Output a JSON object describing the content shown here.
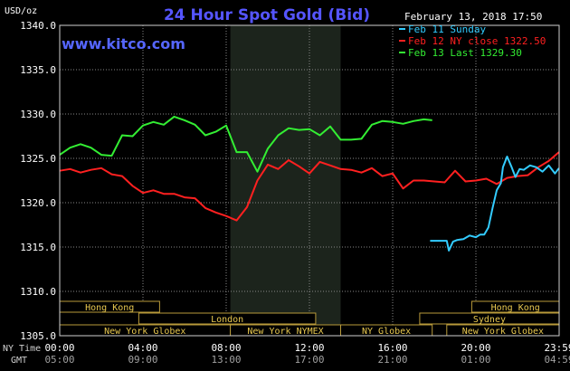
{
  "chart_data": {
    "type": "line",
    "title": "24 Hour Spot Gold (Bid)",
    "watermark": "www.kitco.com",
    "ylabel": "USD/oz",
    "timestamp": "February 13, 2018 17:50",
    "ylim": [
      1305,
      1340
    ],
    "yticks": [
      "1340.0",
      "1335.0",
      "1330.0",
      "1325.0",
      "1320.0",
      "1315.0",
      "1310.0",
      "1305.0"
    ],
    "xlim": [
      0,
      24
    ],
    "x_ny_label": "NY Time",
    "x_gmt_label": "GMT",
    "xticks_ny": [
      "00:00",
      "04:00",
      "08:00",
      "12:00",
      "16:00",
      "20:00",
      "23:59"
    ],
    "xticks_gmt": [
      "05:00",
      "09:00",
      "13:00",
      "17:00",
      "21:00",
      "01:00",
      "04:59"
    ],
    "shaded_session_hours": [
      8.2,
      13.5
    ],
    "sessions": [
      {
        "name": "Hong Kong",
        "row": 1,
        "start": 0,
        "end": 4.8
      },
      {
        "name": "London",
        "row": 2,
        "start": 3.8,
        "end": 12.3
      },
      {
        "name": "New York Globex",
        "row": 3,
        "start": 0,
        "end": 8.2
      },
      {
        "name": "New York NYMEX",
        "row": 3,
        "start": 8.2,
        "end": 13.5
      },
      {
        "name": "NY Globex",
        "row": 3,
        "start": 13.5,
        "end": 17.9
      },
      {
        "name": "Hong Kong",
        "row": 1,
        "start": 19.8,
        "end": 24
      },
      {
        "name": "Sydney",
        "row": 2,
        "start": 17.3,
        "end": 24
      },
      {
        "name": "New York Globex",
        "row": 3,
        "start": 18.6,
        "end": 24
      }
    ],
    "legend_position": "top-right",
    "series": [
      {
        "name": "Feb 11 Sunday",
        "color": "#33ccff",
        "x": [
          17.8,
          18.6,
          18.7,
          18.9,
          19.1,
          19.4,
          19.7,
          20.0,
          20.2,
          20.4,
          20.6,
          20.8,
          21.0,
          21.2,
          21.3,
          21.5,
          21.7,
          21.9,
          22.1,
          22.3,
          22.6,
          22.9,
          23.2,
          23.5,
          23.8,
          23.99
        ],
        "values": [
          1315.7,
          1315.7,
          1314.6,
          1315.6,
          1315.8,
          1315.9,
          1316.3,
          1316.1,
          1316.4,
          1316.4,
          1317.2,
          1319.4,
          1321.4,
          1322.2,
          1324.0,
          1325.2,
          1324.1,
          1322.9,
          1323.8,
          1323.7,
          1324.2,
          1324.0,
          1323.5,
          1324.2,
          1323.3,
          1323.9
        ]
      },
      {
        "name": "Feb 12 NY close 1322.50",
        "color": "#ff2020",
        "x": [
          0,
          0.5,
          1.0,
          1.5,
          2.0,
          2.5,
          3.0,
          3.5,
          4.0,
          4.5,
          5.0,
          5.5,
          6.0,
          6.5,
          7.0,
          7.5,
          8.0,
          8.5,
          9.0,
          9.5,
          10.0,
          10.5,
          11.0,
          11.5,
          12.0,
          12.5,
          13.0,
          13.5,
          14.0,
          14.5,
          15.0,
          15.5,
          16.0,
          16.5,
          17.0,
          17.5,
          18.0,
          18.5,
          19.0,
          19.5,
          20.0,
          20.5,
          21.0,
          21.5,
          22.0,
          22.5,
          23.0,
          23.5,
          23.99
        ],
        "values": [
          1323.6,
          1323.8,
          1323.4,
          1323.7,
          1323.9,
          1323.2,
          1323.0,
          1321.9,
          1321.1,
          1321.4,
          1321.0,
          1321.0,
          1320.6,
          1320.5,
          1319.4,
          1318.9,
          1318.5,
          1318.0,
          1319.5,
          1322.5,
          1324.3,
          1323.8,
          1324.8,
          1324.1,
          1323.3,
          1324.6,
          1324.2,
          1323.8,
          1323.7,
          1323.4,
          1323.9,
          1323.0,
          1323.3,
          1321.6,
          1322.5,
          1322.5,
          1322.4,
          1322.3,
          1323.6,
          1322.4,
          1322.5,
          1322.7,
          1322.1,
          1322.8,
          1323.0,
          1323.1,
          1324.0,
          1324.7,
          1325.7
        ]
      },
      {
        "name": "Feb 13 Last 1329.30",
        "color": "#33ee33",
        "x": [
          0,
          0.5,
          1.0,
          1.5,
          2.0,
          2.5,
          3.0,
          3.5,
          4.0,
          4.5,
          5.0,
          5.5,
          6.0,
          6.5,
          7.0,
          7.5,
          8.0,
          8.5,
          9.0,
          9.5,
          10.0,
          10.5,
          11.0,
          11.5,
          12.0,
          12.5,
          13.0,
          13.5,
          14.0,
          14.5,
          15.0,
          15.5,
          16.0,
          16.5,
          17.0,
          17.5,
          17.9
        ],
        "values": [
          1325.4,
          1326.2,
          1326.6,
          1326.2,
          1325.4,
          1325.3,
          1327.6,
          1327.5,
          1328.7,
          1329.1,
          1328.8,
          1329.7,
          1329.3,
          1328.8,
          1327.6,
          1328.0,
          1328.7,
          1325.7,
          1325.7,
          1323.5,
          1326.1,
          1327.6,
          1328.4,
          1328.2,
          1328.3,
          1327.6,
          1328.6,
          1327.1,
          1327.1,
          1327.2,
          1328.8,
          1329.2,
          1329.1,
          1328.9,
          1329.2,
          1329.4,
          1329.3
        ]
      }
    ]
  }
}
